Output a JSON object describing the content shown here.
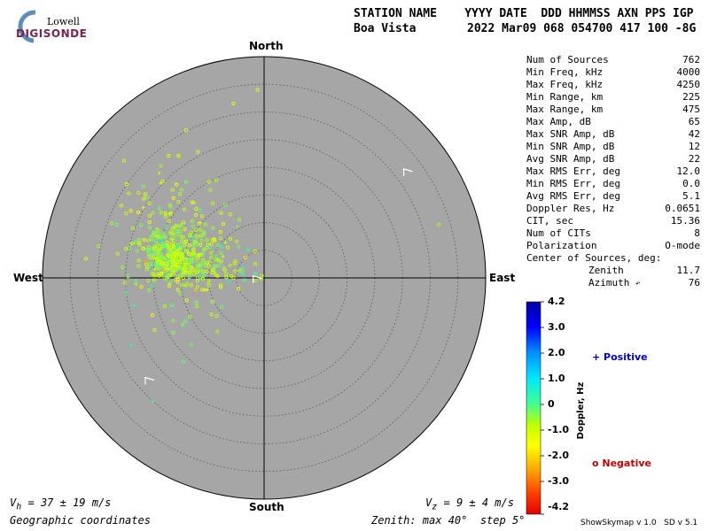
{
  "logo": {
    "line1": "Lowell",
    "line2": "DIGISONDE"
  },
  "header": {
    "line1": "STATION NAME    YYYY DATE  DDD HHMMSS AXN PPS IGP",
    "station": "Boa Vista",
    "record": "2022 Mar09 068 054700 417 100 -8G"
  },
  "stats": [
    {
      "label": "Num of Sources",
      "value": "762"
    },
    {
      "label": "Min Freq, kHz",
      "value": "4000"
    },
    {
      "label": "Max Freq, kHz",
      "value": "4250"
    },
    {
      "label": "Min Range, km",
      "value": "225"
    },
    {
      "label": "Max Range, km",
      "value": "475"
    },
    {
      "label": "Max Amp, dB",
      "value": "65"
    },
    {
      "label": "Max SNR Amp, dB",
      "value": "42"
    },
    {
      "label": "Min SNR Amp, dB",
      "value": "12"
    },
    {
      "label": "Avg SNR Amp, dB",
      "value": "22"
    },
    {
      "label": "Max RMS Err, deg",
      "value": "12.0"
    },
    {
      "label": "Min RMS Err, deg",
      "value": "0.0"
    },
    {
      "label": "Avg RMS Err, deg",
      "value": "5.1"
    },
    {
      "label": "Doppler Res, Hz",
      "value": "0.0651"
    },
    {
      "label": "CIT, sec",
      "value": "15.36"
    },
    {
      "label": "Num of CITs",
      "value": "8"
    },
    {
      "label": "Polarization",
      "value": "O-mode"
    }
  ],
  "center": {
    "title": "Center of Sources, deg:",
    "zenith_label": "Zenith",
    "zenith_value": "11.7",
    "azimuth_label": "Azimuth",
    "azimuth_value": "76"
  },
  "directions": {
    "north": "North",
    "south": "South",
    "east": "East",
    "west": "West"
  },
  "footer": {
    "vh_sym": "V",
    "vh_sub": "h",
    "vh_text": " = 37 ± 19 m/s",
    "vz_sym": "V",
    "vz_sub": "z",
    "vz_text": " = 9 ± 4 m/s",
    "coords": "Geographic coordinates",
    "zenith_info": "Zenith: max 40°  step 5°",
    "version": "ShowSkymap v 1.0   SD v 5.1"
  },
  "colorbar": {
    "label": "Doppler, Hz",
    "ticks": [
      "4.2",
      "3.0",
      "2.0",
      "1.0",
      "0",
      "-1.0",
      "-2.0",
      "-3.0",
      "-4.2"
    ],
    "positive_label": "+ Positive",
    "negative_label": "o Negative",
    "positive_color": "#0000cc",
    "negative_color": "#cc0000"
  },
  "chart_data": {
    "type": "scatter",
    "projection": "polar-skymap",
    "zenith_max_deg": 40,
    "zenith_step_deg": 5,
    "doppler_range_hz": [
      -4.2,
      4.2
    ],
    "background_color": "#a6a6a6",
    "cluster": {
      "count": 762,
      "center_zenith_deg": 11.7,
      "center_azimuth_deg": 76
    },
    "velocity_arrows": [
      {
        "zenith_deg": 32,
        "azimuth_deg": 52
      },
      {
        "zenith_deg": 2,
        "azimuth_deg": 280
      },
      {
        "zenith_deg": 28,
        "azimuth_deg": 230
      }
    ],
    "sample_points": [
      {
        "zenith_deg": 21.0,
        "azimuth_deg": 302,
        "doppler": -0.6,
        "sign": "negative"
      },
      {
        "zenith_deg": 22.0,
        "azimuth_deg": 288,
        "doppler": -0.8,
        "sign": "negative"
      },
      {
        "zenith_deg": 19.0,
        "azimuth_deg": 283,
        "doppler": -0.4,
        "sign": "negative"
      },
      {
        "zenith_deg": 14.0,
        "azimuth_deg": 282,
        "doppler": -0.5,
        "sign": "negative"
      },
      {
        "zenith_deg": 16.0,
        "azimuth_deg": 275,
        "doppler": -0.9,
        "sign": "negative"
      },
      {
        "zenith_deg": 12.0,
        "azimuth_deg": 290,
        "doppler": -0.3,
        "sign": "negative"
      },
      {
        "zenith_deg": 11.0,
        "azimuth_deg": 276,
        "doppler": -0.7,
        "sign": "negative"
      },
      {
        "zenith_deg": 18.0,
        "azimuth_deg": 270,
        "doppler": -0.5,
        "sign": "negative"
      },
      {
        "zenith_deg": 9.0,
        "azimuth_deg": 300,
        "doppler": -0.2,
        "sign": "negative"
      },
      {
        "zenith_deg": 24.0,
        "azimuth_deg": 258,
        "doppler": 0.4,
        "sign": "positive"
      },
      {
        "zenith_deg": 25.0,
        "azimuth_deg": 264,
        "doppler": 0.3,
        "sign": "positive"
      },
      {
        "zenith_deg": 27.0,
        "azimuth_deg": 243,
        "doppler": 0.5,
        "sign": "positive"
      },
      {
        "zenith_deg": 30.0,
        "azimuth_deg": 222,
        "doppler": 0.2,
        "sign": "positive"
      },
      {
        "zenith_deg": 28.0,
        "azimuth_deg": 322,
        "doppler": -1.0,
        "sign": "negative"
      },
      {
        "zenith_deg": 33.0,
        "azimuth_deg": 310,
        "doppler": -0.8,
        "sign": "negative"
      },
      {
        "zenith_deg": 32.0,
        "azimuth_deg": 350,
        "doppler": -1.2,
        "sign": "negative"
      },
      {
        "zenith_deg": 34.0,
        "azimuth_deg": 358,
        "doppler": -1.1,
        "sign": "negative"
      },
      {
        "zenith_deg": 20.0,
        "azimuth_deg": 330,
        "doppler": -0.9,
        "sign": "negative"
      },
      {
        "zenith_deg": 15.0,
        "azimuth_deg": 305,
        "doppler": -0.6,
        "sign": "negative"
      },
      {
        "zenith_deg": 10.0,
        "azimuth_deg": 262,
        "doppler": -0.4,
        "sign": "negative"
      },
      {
        "zenith_deg": 13.0,
        "azimuth_deg": 250,
        "doppler": -0.3,
        "sign": "negative"
      },
      {
        "zenith_deg": 17.0,
        "azimuth_deg": 240,
        "doppler": -0.2,
        "sign": "negative"
      },
      {
        "zenith_deg": 6.0,
        "azimuth_deg": 300,
        "doppler": -0.7,
        "sign": "negative"
      },
      {
        "zenith_deg": 23.0,
        "azimuth_deg": 296,
        "doppler": -1.3,
        "sign": "negative"
      },
      {
        "zenith_deg": 33.0,
        "azimuth_deg": 73,
        "doppler": -0.5,
        "sign": "negative"
      }
    ]
  }
}
